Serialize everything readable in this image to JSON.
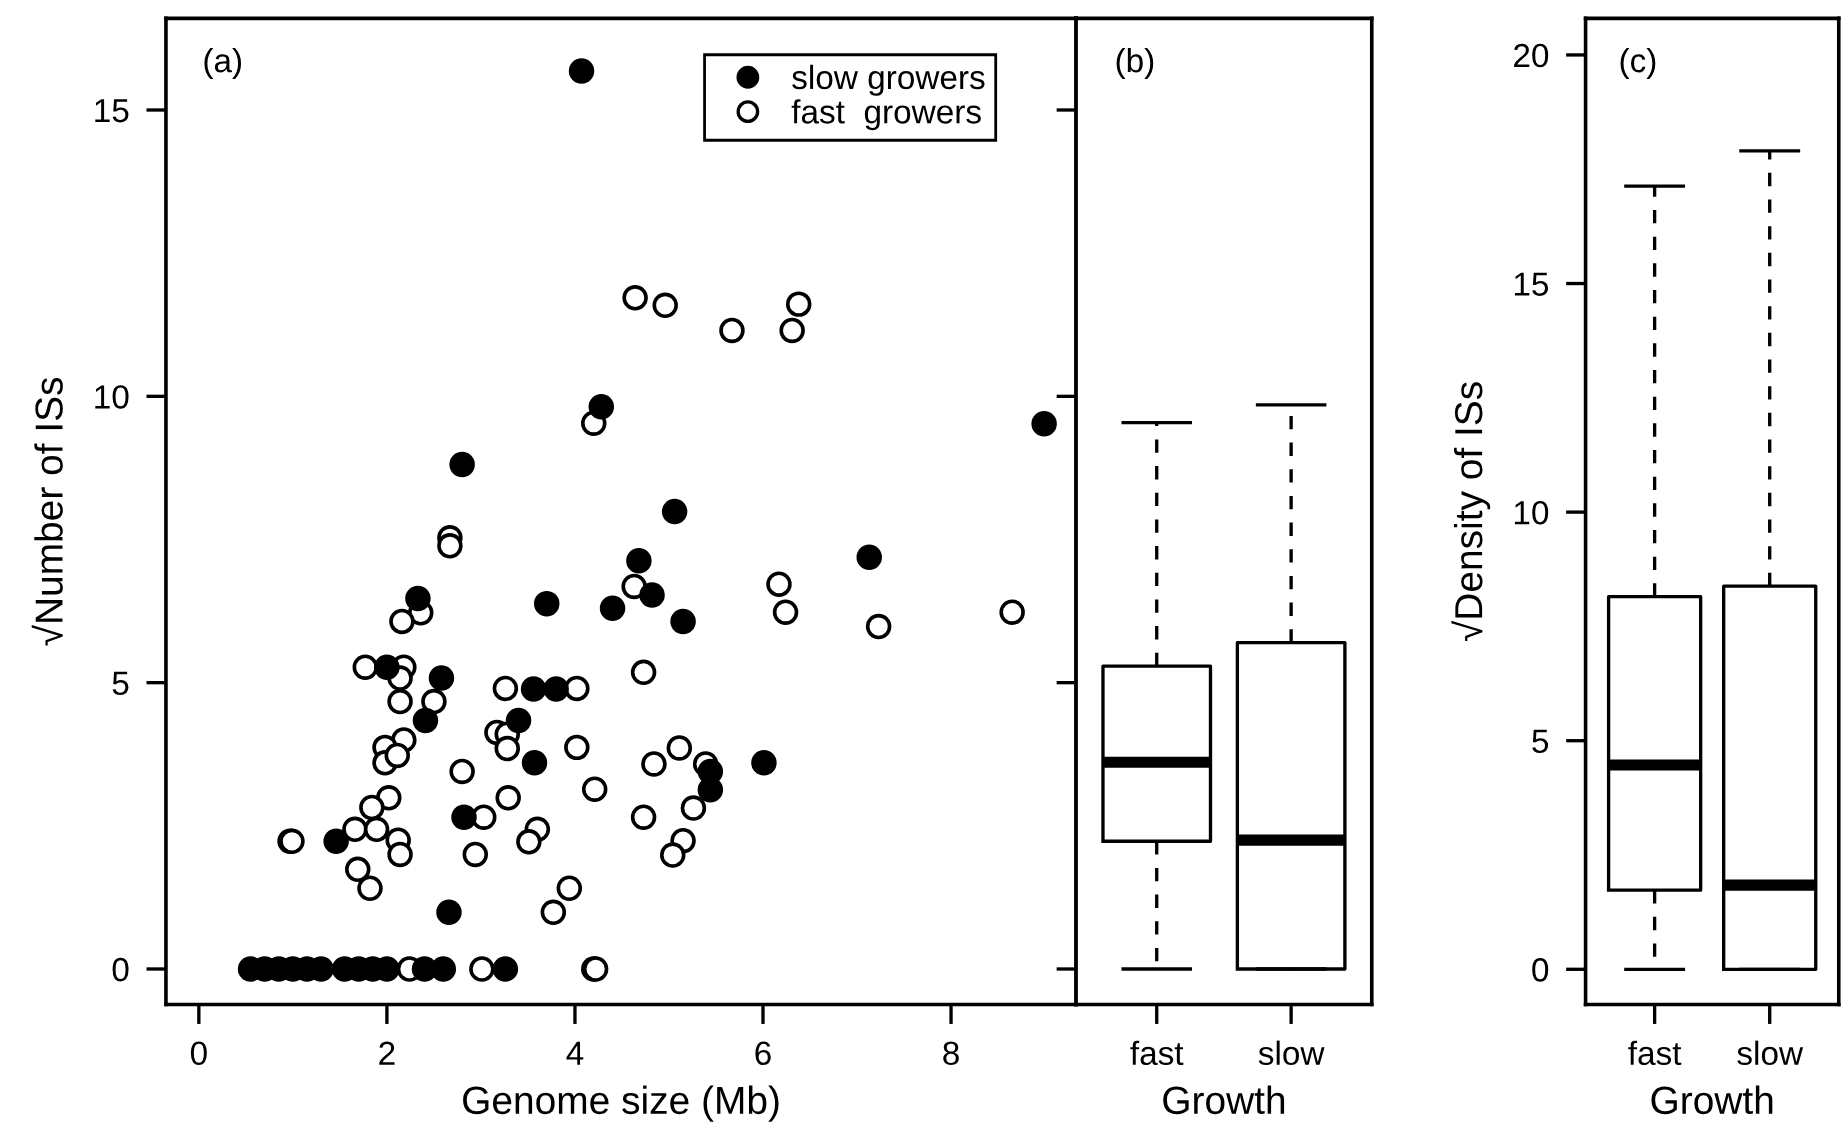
{
  "chart_data": [
    {
      "type": "scatter",
      "title": "(a)",
      "xlabel": "Genome size (Mb)",
      "ylabel": "√Number of ISs",
      "xlim": [
        -0.35,
        9.33
      ],
      "ylim": [
        -0.62,
        16.6
      ],
      "xticks": [
        0,
        2,
        4,
        6,
        8
      ],
      "yticks": [
        0,
        5,
        10,
        15
      ],
      "legend": "top right",
      "marker": "circle",
      "series": [
        {
          "name": "slow growers",
          "color": "#000000",
          "x": [
            4.07,
            4.28,
            2.8,
            4.68,
            8.99,
            5.06,
            7.13,
            2.33,
            3.7,
            4.4,
            4.82,
            2.0,
            2.58,
            2.41,
            3.4,
            3.56,
            3.8,
            3.57,
            2.82,
            1.46,
            2.66,
            0.55,
            0.7,
            0.85,
            1.0,
            1.15,
            1.3,
            1.55,
            1.7,
            1.85,
            2.0,
            2.4,
            2.6,
            3.26,
            5.15,
            6.01,
            5.44,
            5.44
          ],
          "values": [
            15.68,
            9.82,
            8.81,
            7.13,
            9.52,
            7.99,
            7.19,
            6.47,
            6.38,
            6.3,
            6.53,
            5.27,
            5.08,
            4.34,
            4.34,
            4.89,
            4.89,
            3.6,
            2.65,
            2.23,
            0.99,
            0,
            0,
            0,
            0,
            0,
            0,
            0,
            0,
            0,
            0,
            0,
            0,
            0,
            6.07,
            3.6,
            3.45,
            3.13
          ]
        },
        {
          "name": "fast  growers",
          "color": "#ffffff",
          "x": [
            4.64,
            4.2,
            2.67,
            2.67,
            4.96,
            5.67,
            6.38,
            6.31,
            6.17,
            4.63,
            6.24,
            7.23,
            8.65,
            4.73,
            5.11,
            4.84,
            5.39,
            5.26,
            4.73,
            5.15,
            5.04,
            2.36,
            2.16,
            1.77,
            2.18,
            2.14,
            2.14,
            2.5,
            2.18,
            1.98,
            1.98,
            2.11,
            2.02,
            1.84,
            1.66,
            1.89,
            2.12,
            2.14,
            1.69,
            1.82,
            0.97,
            0.99,
            3.26,
            4.02,
            3.17,
            3.28,
            3.28,
            4.02,
            2.8,
            4.21,
            3.29,
            3.03,
            3.6,
            3.51,
            2.94,
            3.94,
            3.77,
            2.24,
            3.01,
            4.2,
            4.22
          ],
          "values": [
            11.72,
            9.53,
            7.53,
            7.39,
            11.59,
            11.15,
            11.61,
            11.15,
            6.72,
            6.68,
            6.23,
            5.98,
            6.23,
            5.18,
            3.86,
            3.58,
            3.58,
            2.81,
            2.65,
            2.24,
            1.99,
            6.22,
            6.07,
            5.27,
            5.27,
            5.08,
            4.67,
            4.67,
            4.0,
            3.87,
            3.6,
            3.73,
            2.99,
            2.82,
            2.44,
            2.44,
            2.25,
            2.0,
            1.74,
            1.41,
            2.23,
            2.23,
            4.9,
            4.9,
            4.13,
            4.1,
            3.85,
            3.87,
            3.45,
            3.14,
            2.99,
            2.65,
            2.44,
            2.22,
            2.0,
            1.41,
            0.99,
            0,
            0,
            0,
            0
          ]
        }
      ]
    },
    {
      "type": "box",
      "title": "(b)",
      "xlabel": "Growth",
      "categories": [
        "fast",
        "slow"
      ],
      "ylim": [
        -0.62,
        16.6
      ],
      "yticks": [
        0,
        5,
        10,
        15
      ],
      "tick_labels": "x",
      "boxes": [
        {
          "low": 0,
          "q1": 2.23,
          "median": 3.61,
          "q3": 5.29,
          "high": 9.54
        },
        {
          "low": 0,
          "q1": 0,
          "median": 2.25,
          "q3": 5.7,
          "high": 9.85
        }
      ]
    },
    {
      "type": "box",
      "title": "(c)",
      "xlabel": "Growth",
      "ylabel": "√Density of ISs",
      "categories": [
        "fast",
        "slow"
      ],
      "ylim": [
        -0.77,
        20.8
      ],
      "yticks": [
        0,
        5,
        10,
        15,
        20
      ],
      "boxes": [
        {
          "low": 0,
          "q1": 1.73,
          "median": 4.47,
          "q3": 8.15,
          "high": 17.13
        },
        {
          "low": 0,
          "q1": 0,
          "median": 1.84,
          "q3": 8.38,
          "high": 17.9
        }
      ]
    }
  ]
}
